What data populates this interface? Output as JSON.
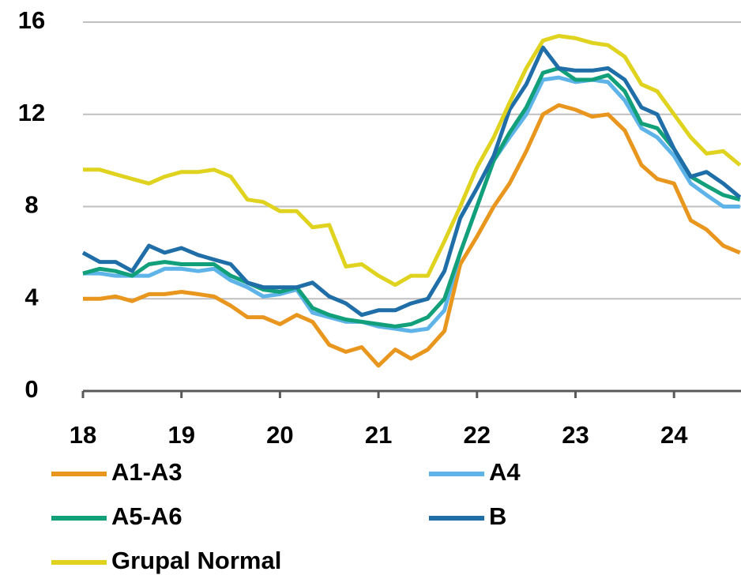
{
  "chart_data": {
    "type": "line",
    "x": [
      18,
      18.17,
      18.33,
      18.5,
      18.67,
      18.83,
      19,
      19.17,
      19.33,
      19.5,
      19.67,
      19.83,
      20,
      20.17,
      20.33,
      20.5,
      20.67,
      20.83,
      21,
      21.17,
      21.33,
      21.5,
      21.67,
      21.83,
      22,
      22.17,
      22.33,
      22.5,
      22.67,
      22.83,
      23,
      23.17,
      23.33,
      23.5,
      23.67,
      23.83,
      24,
      24.17,
      24.33,
      24.5,
      24.67
    ],
    "xlim": [
      18,
      24.67
    ],
    "xticks": [
      18,
      19,
      20,
      21,
      22,
      23,
      24
    ],
    "ylim": [
      0,
      16
    ],
    "yticks": [
      0,
      4,
      8,
      12,
      16
    ],
    "grid": true,
    "legend": "bottom",
    "series": [
      {
        "name": "A1-A3",
        "color": "#e8961e",
        "values": [
          4.0,
          4.0,
          4.1,
          3.9,
          4.2,
          4.2,
          4.3,
          4.2,
          4.1,
          3.7,
          3.2,
          3.2,
          2.9,
          3.3,
          3.0,
          2.0,
          1.7,
          1.9,
          1.1,
          1.8,
          1.4,
          1.8,
          2.6,
          5.5,
          6.7,
          8.0,
          9.0,
          10.4,
          12.0,
          12.4,
          12.2,
          11.9,
          12.0,
          11.3,
          9.8,
          9.2,
          9.0,
          7.4,
          7.0,
          6.3,
          6.0
        ]
      },
      {
        "name": "A4",
        "color": "#5eb4e8",
        "values": [
          5.1,
          5.1,
          5.0,
          5.0,
          5.0,
          5.3,
          5.3,
          5.2,
          5.3,
          4.8,
          4.5,
          4.1,
          4.2,
          4.4,
          3.4,
          3.2,
          3.0,
          3.0,
          2.8,
          2.7,
          2.6,
          2.7,
          3.5,
          6.0,
          8.0,
          10.0,
          11.0,
          12.0,
          13.5,
          13.6,
          13.4,
          13.5,
          13.4,
          12.6,
          11.4,
          11.0,
          10.2,
          9.0,
          8.5,
          8.0,
          8.0
        ]
      },
      {
        "name": "A5-A6",
        "color": "#12a07a",
        "values": [
          5.1,
          5.3,
          5.2,
          5.0,
          5.5,
          5.6,
          5.5,
          5.5,
          5.5,
          5.0,
          4.7,
          4.4,
          4.3,
          4.5,
          3.6,
          3.3,
          3.1,
          3.0,
          2.9,
          2.8,
          2.9,
          3.2,
          4.0,
          6.0,
          8.0,
          10.0,
          11.2,
          12.3,
          13.8,
          14.0,
          13.5,
          13.5,
          13.7,
          13.0,
          11.6,
          11.4,
          10.5,
          9.3,
          8.9,
          8.5,
          8.3
        ]
      },
      {
        "name": "B",
        "color": "#1f6ea8",
        "values": [
          6.0,
          5.6,
          5.6,
          5.2,
          6.3,
          6.0,
          6.2,
          5.9,
          5.7,
          5.5,
          4.7,
          4.5,
          4.5,
          4.5,
          4.7,
          4.1,
          3.8,
          3.3,
          3.5,
          3.5,
          3.8,
          4.0,
          5.2,
          7.5,
          8.8,
          10.2,
          12.2,
          13.3,
          14.9,
          14.0,
          13.9,
          13.9,
          14.0,
          13.5,
          12.3,
          12.0,
          10.5,
          9.3,
          9.5,
          9.0,
          8.4
        ]
      },
      {
        "name": "Grupal Normal",
        "color": "#dfd320",
        "values": [
          9.6,
          9.6,
          9.4,
          9.2,
          9.0,
          9.3,
          9.5,
          9.5,
          9.6,
          9.3,
          8.3,
          8.2,
          7.8,
          7.8,
          7.1,
          7.2,
          5.4,
          5.5,
          5.0,
          4.6,
          5.0,
          5.0,
          6.5,
          8.0,
          9.7,
          11.0,
          12.5,
          14.0,
          15.2,
          15.4,
          15.3,
          15.1,
          15.0,
          14.5,
          13.3,
          13.0,
          12.0,
          11.0,
          10.3,
          10.4,
          9.8
        ]
      }
    ]
  }
}
